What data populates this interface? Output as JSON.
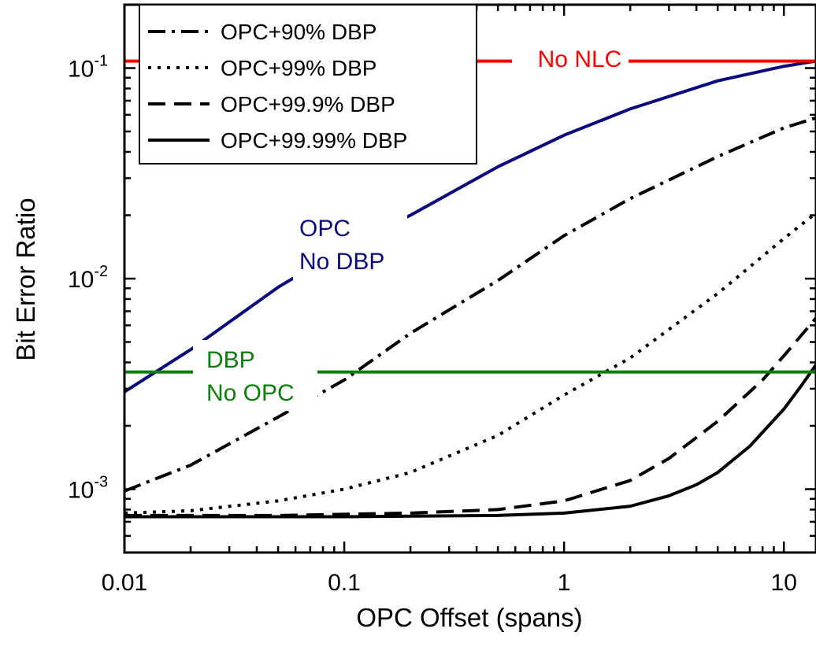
{
  "chart_data": {
    "type": "line",
    "xlabel": "OPC Offset (spans)",
    "ylabel": "Bit Error Ratio",
    "xscale": "log",
    "yscale": "log",
    "xlim": [
      0.01,
      14
    ],
    "ylim": [
      0.0005,
      0.2
    ],
    "grid": false,
    "legend_position": "top-left",
    "x_ticks": [
      {
        "value": 0.01,
        "label": "0.01"
      },
      {
        "value": 0.1,
        "label": "0.1"
      },
      {
        "value": 1,
        "label": "1"
      },
      {
        "value": 10,
        "label": "10"
      }
    ],
    "y_ticks": [
      {
        "value": 0.001,
        "base": "10",
        "exp": "-3"
      },
      {
        "value": 0.01,
        "base": "10",
        "exp": "-2"
      },
      {
        "value": 0.1,
        "base": "10",
        "exp": "-1"
      }
    ],
    "series": [
      {
        "name": "OPC+90% DBP",
        "style": "dashdot",
        "color": "#000000",
        "x": [
          0.01,
          0.02,
          0.05,
          0.1,
          0.2,
          0.5,
          1,
          2,
          5,
          10,
          14
        ],
        "y": [
          0.00098,
          0.0013,
          0.0022,
          0.0033,
          0.0055,
          0.0098,
          0.016,
          0.024,
          0.038,
          0.052,
          0.058
        ]
      },
      {
        "name": "OPC+99% DBP",
        "style": "dotted",
        "color": "#000000",
        "x": [
          0.01,
          0.02,
          0.05,
          0.1,
          0.2,
          0.5,
          1,
          2,
          5,
          10,
          14
        ],
        "y": [
          0.00077,
          0.00079,
          0.00088,
          0.001,
          0.0012,
          0.0018,
          0.0028,
          0.0042,
          0.0085,
          0.0155,
          0.0205
        ]
      },
      {
        "name": "OPC+99.9% DBP",
        "style": "dashed",
        "color": "#000000",
        "x": [
          0.01,
          0.05,
          0.1,
          0.2,
          0.5,
          1,
          2,
          3,
          5,
          8,
          10,
          14
        ],
        "y": [
          0.00075,
          0.00075,
          0.00076,
          0.00077,
          0.0008,
          0.00088,
          0.0011,
          0.0014,
          0.0021,
          0.0033,
          0.0043,
          0.0065
        ]
      },
      {
        "name": "OPC+99.99% DBP",
        "style": "solid",
        "color": "#000000",
        "x": [
          0.01,
          0.1,
          0.5,
          1,
          2,
          3,
          4,
          5,
          7,
          10,
          12,
          14
        ],
        "y": [
          0.00074,
          0.00074,
          0.00075,
          0.00077,
          0.00083,
          0.00093,
          0.00105,
          0.0012,
          0.0016,
          0.0024,
          0.0031,
          0.0039
        ]
      },
      {
        "name": "",
        "label_lines": [
          "OPC",
          "No DBP"
        ],
        "style": "solid",
        "color": "#0a0a80",
        "x": [
          0.01,
          0.02,
          0.05,
          0.1,
          0.2,
          0.5,
          1,
          2,
          5,
          10,
          14
        ],
        "y": [
          0.0029,
          0.0046,
          0.0091,
          0.014,
          0.02,
          0.034,
          0.048,
          0.064,
          0.087,
          0.102,
          0.108
        ]
      },
      {
        "name": "",
        "label_lines": [
          "DBP",
          "No OPC"
        ],
        "style": "solid",
        "color": "#0a800a",
        "x": [
          0.01,
          14
        ],
        "y": [
          0.0036,
          0.0036
        ]
      },
      {
        "name": "",
        "label_lines": [
          "No NLC"
        ],
        "style": "solid",
        "color": "#ff0000",
        "x": [
          0.01,
          14
        ],
        "y": [
          0.108,
          0.108
        ]
      }
    ],
    "legend": [
      {
        "label": "OPC+90% DBP",
        "style": "dashdot"
      },
      {
        "label": "OPC+99% DBP",
        "style": "dotted"
      },
      {
        "label": "OPC+99.9% DBP",
        "style": "dashed"
      },
      {
        "label": "OPC+99.99% DBP",
        "style": "solid"
      }
    ]
  }
}
